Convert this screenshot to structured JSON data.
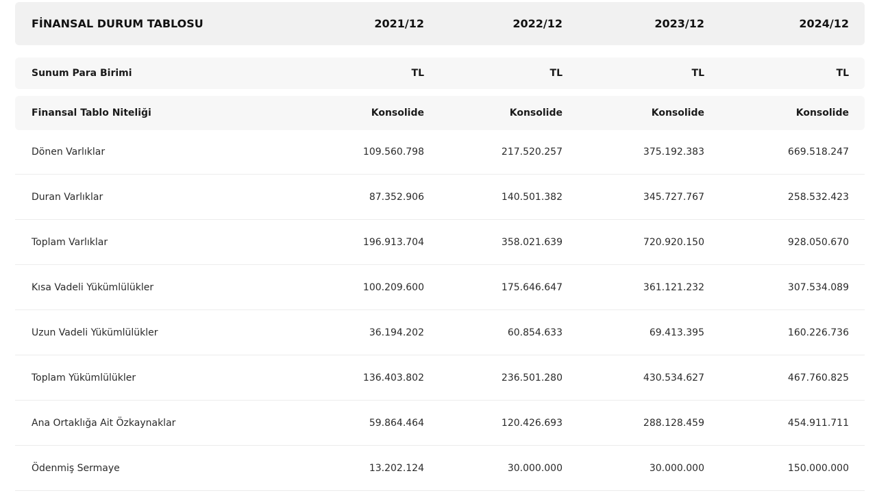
{
  "table": {
    "title": "FİNANSAL DURUM TABLOSU",
    "periods": [
      "2021/12",
      "2022/12",
      "2023/12",
      "2024/12"
    ],
    "meta_rows": [
      {
        "label": "Sunum Para Birimi",
        "values": [
          "TL",
          "TL",
          "TL",
          "TL"
        ]
      },
      {
        "label": "Finansal Tablo Niteliği",
        "values": [
          "Konsolide",
          "Konsolide",
          "Konsolide",
          "Konsolide"
        ]
      }
    ],
    "rows": [
      {
        "label": "Dönen Varlıklar",
        "values": [
          "109.560.798",
          "217.520.257",
          "375.192.383",
          "669.518.247"
        ]
      },
      {
        "label": "Duran Varlıklar",
        "values": [
          "87.352.906",
          "140.501.382",
          "345.727.767",
          "258.532.423"
        ]
      },
      {
        "label": "Toplam Varlıklar",
        "values": [
          "196.913.704",
          "358.021.639",
          "720.920.150",
          "928.050.670"
        ]
      },
      {
        "label": "Kısa Vadeli Yükümlülükler",
        "values": [
          "100.209.600",
          "175.646.647",
          "361.121.232",
          "307.534.089"
        ]
      },
      {
        "label": "Uzun Vadeli Yükümlülükler",
        "values": [
          "36.194.202",
          "60.854.633",
          "69.413.395",
          "160.226.736"
        ]
      },
      {
        "label": "Toplam Yükümlülükler",
        "values": [
          "136.403.802",
          "236.501.280",
          "430.534.627",
          "467.760.825"
        ]
      },
      {
        "label": "Ana Ortaklığa Ait Özkaynaklar",
        "values": [
          "59.864.464",
          "120.426.693",
          "288.128.459",
          "454.911.711"
        ]
      },
      {
        "label": "Ödenmiş Sermaye",
        "values": [
          "13.202.124",
          "30.000.000",
          "30.000.000",
          "150.000.000"
        ]
      }
    ]
  }
}
